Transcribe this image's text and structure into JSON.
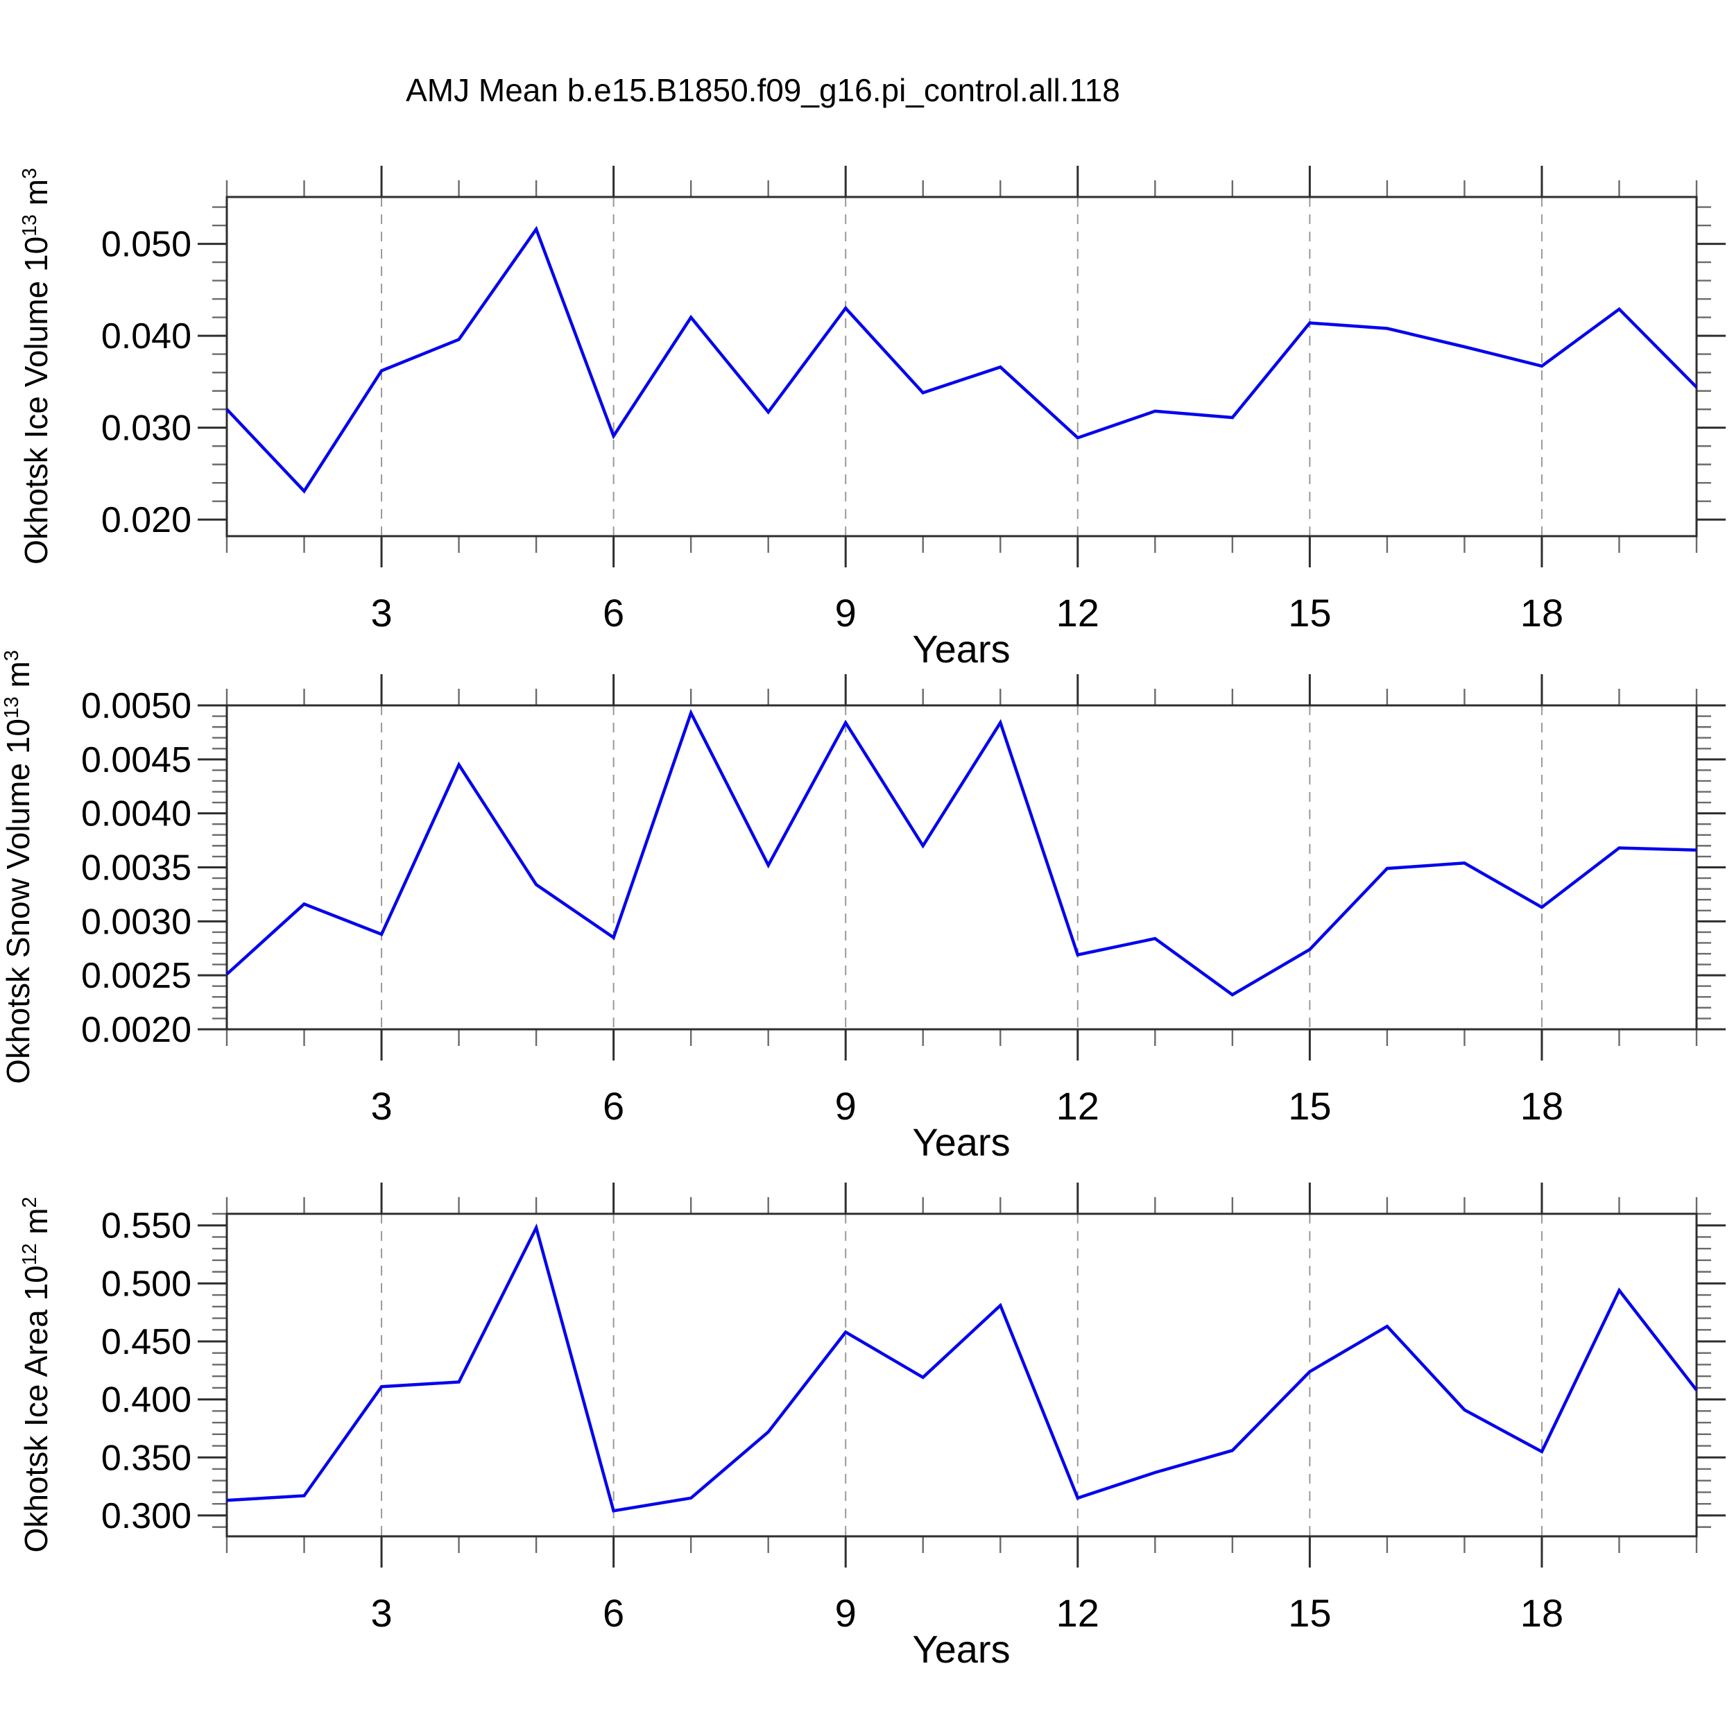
{
  "page": {
    "title": "AMJ Mean b.e15.B1850.f09_g16.pi_control.all.118"
  },
  "xaxis": {
    "label": "Years",
    "min": 1,
    "max": 20,
    "major_ticks": [
      3,
      6,
      9,
      12,
      15,
      18
    ],
    "major_labels": [
      "3",
      "6",
      "9",
      "12",
      "15",
      "18"
    ],
    "minor_step": 1,
    "grid": true
  },
  "colors": {
    "line": "#0505EC",
    "grid": "#999999",
    "axis": "#2e2e2e",
    "major_tick": "#2e2e2e",
    "minor_tick": "#6a6a6a",
    "text": "#000000",
    "background": "#ffffff"
  },
  "chart_data": [
    {
      "type": "line",
      "name": "okhotsk-ice-volume",
      "ylabel": {
        "prefix": "Okhotsk Ice Volume 10",
        "exp": "13",
        "unit": " m",
        "unit_exp": "3"
      },
      "xlabel": "Years",
      "x": [
        1,
        2,
        3,
        4,
        5,
        6,
        7,
        8,
        9,
        10,
        11,
        12,
        13,
        14,
        15,
        16,
        17,
        18,
        19,
        20
      ],
      "values": [
        0.032,
        0.0231,
        0.0362,
        0.0396,
        0.0516,
        0.0291,
        0.042,
        0.0317,
        0.043,
        0.0338,
        0.0366,
        0.0289,
        0.0318,
        0.0311,
        0.0414,
        0.0408,
        0.0388,
        0.0367,
        0.0429,
        0.0344
      ],
      "ylim": [
        0.0182,
        0.0551
      ],
      "ytick_values": [
        0.02,
        0.03,
        0.04,
        0.05
      ],
      "ytick_labels": [
        "0.020",
        "0.030",
        "0.040",
        "0.050"
      ],
      "yminor_step": 0.002,
      "grid": true,
      "legend": "none"
    },
    {
      "type": "line",
      "name": "okhotsk-snow-volume",
      "ylabel": {
        "prefix": "Okhotsk Snow Volume 10",
        "exp": "13",
        "unit": " m",
        "unit_exp": "3"
      },
      "xlabel": "Years",
      "x": [
        1,
        2,
        3,
        4,
        5,
        6,
        7,
        8,
        9,
        10,
        11,
        12,
        13,
        14,
        15,
        16,
        17,
        18,
        19,
        20
      ],
      "values": [
        0.00251,
        0.00316,
        0.00288,
        0.00445,
        0.00334,
        0.00285,
        0.00493,
        0.00352,
        0.00484,
        0.0037,
        0.00484,
        0.00269,
        0.00284,
        0.00232,
        0.00274,
        0.00349,
        0.00354,
        0.00313,
        0.00368,
        0.00366
      ],
      "ylim": [
        0.002,
        0.005
      ],
      "ytick_values": [
        0.002,
        0.0025,
        0.003,
        0.0035,
        0.004,
        0.0045,
        0.005
      ],
      "ytick_labels": [
        "0.0020",
        "0.0025",
        "0.0030",
        "0.0035",
        "0.0040",
        "0.0045",
        "0.0050"
      ],
      "yminor_step": 0.0001,
      "grid": true,
      "legend": "none"
    },
    {
      "type": "line",
      "name": "okhotsk-ice-area",
      "ylabel": {
        "prefix": "Okhotsk Ice Area 10",
        "exp": "12",
        "unit": " m",
        "unit_exp": "2"
      },
      "xlabel": "Years",
      "x": [
        1,
        2,
        3,
        4,
        5,
        6,
        7,
        8,
        9,
        10,
        11,
        12,
        13,
        14,
        15,
        16,
        17,
        18,
        19,
        20
      ],
      "values": [
        0.313,
        0.317,
        0.411,
        0.415,
        0.548,
        0.304,
        0.315,
        0.372,
        0.458,
        0.419,
        0.481,
        0.315,
        0.337,
        0.356,
        0.424,
        0.463,
        0.391,
        0.355,
        0.494,
        0.408
      ],
      "ylim": [
        0.282,
        0.56
      ],
      "ytick_values": [
        0.3,
        0.35,
        0.4,
        0.45,
        0.5,
        0.55
      ],
      "ytick_labels": [
        "0.300",
        "0.350",
        "0.400",
        "0.450",
        "0.500",
        "0.550"
      ],
      "yminor_step": 0.01,
      "grid": true,
      "legend": "none"
    }
  ]
}
